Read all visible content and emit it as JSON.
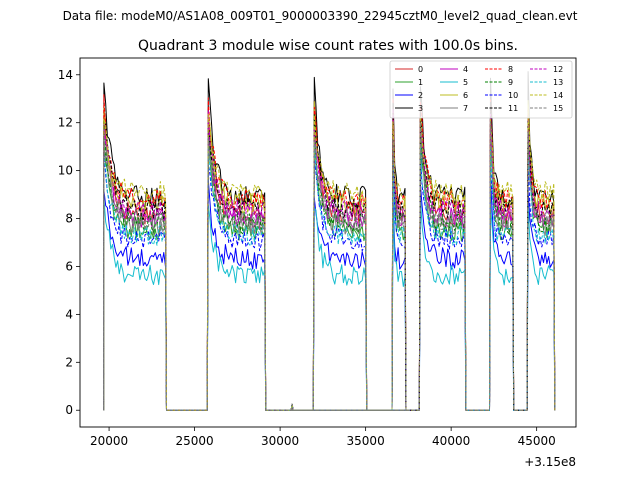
{
  "chart_data": {
    "type": "line",
    "suptitle": "Data file: modeM0/AS1A08_009T01_9000003390_22945cztM0_level2_quad_clean.evt",
    "title": "Quadrant 3 module wise count rates with 100.0s bins.",
    "xlabel": "",
    "ylabel": "",
    "x_offset_label": "+3.15e8",
    "xlim": [
      18300,
      47300
    ],
    "ylim": [
      -0.7,
      14.7
    ],
    "x_ticks": [
      20000,
      25000,
      30000,
      35000,
      40000,
      45000
    ],
    "x_tick_labels": [
      "20000",
      "25000",
      "30000",
      "35000",
      "40000",
      "45000"
    ],
    "y_ticks": [
      0,
      2,
      4,
      6,
      8,
      10,
      12,
      14
    ],
    "y_tick_labels": [
      "0",
      "2",
      "4",
      "6",
      "8",
      "10",
      "12",
      "14"
    ],
    "active_segments": [
      [
        19700,
        23300
      ],
      [
        25800,
        29100
      ],
      [
        32000,
        35000
      ],
      [
        36600,
        37300
      ],
      [
        38200,
        40800
      ],
      [
        42300,
        43600
      ],
      [
        44500,
        46000
      ]
    ],
    "blip": {
      "x": 30700,
      "y": 0.25
    },
    "series": [
      {
        "name": "0",
        "color": "#d62728",
        "style": "solid",
        "level": 8.2,
        "peak": 12.8
      },
      {
        "name": "1",
        "color": "#2ca02c",
        "style": "solid",
        "level": 7.5,
        "peak": 11.5
      },
      {
        "name": "2",
        "color": "#0000ff",
        "style": "solid",
        "level": 6.3,
        "peak": 9.3
      },
      {
        "name": "3",
        "color": "#000000",
        "style": "solid",
        "level": 8.9,
        "peak": 13.7
      },
      {
        "name": "4",
        "color": "#bf00bf",
        "style": "solid",
        "level": 8.0,
        "peak": 12.0
      },
      {
        "name": "5",
        "color": "#17becf",
        "style": "solid",
        "level": 5.6,
        "peak": 8.8
      },
      {
        "name": "6",
        "color": "#bcbd22",
        "style": "solid",
        "level": 8.6,
        "peak": 12.6
      },
      {
        "name": "7",
        "color": "#7f7f7f",
        "style": "solid",
        "level": 7.7,
        "peak": 11.7
      },
      {
        "name": "8",
        "color": "#ff0000",
        "style": "dashed",
        "level": 8.8,
        "peak": 12.9
      },
      {
        "name": "9",
        "color": "#008000",
        "style": "dashed",
        "level": 7.8,
        "peak": 11.8
      },
      {
        "name": "10",
        "color": "#0000ff",
        "style": "dashed",
        "level": 7.1,
        "peak": 10.4
      },
      {
        "name": "11",
        "color": "#000000",
        "style": "dashed",
        "level": 8.4,
        "peak": 12.5
      },
      {
        "name": "12",
        "color": "#bf00bf",
        "style": "dashed",
        "level": 8.3,
        "peak": 12.2
      },
      {
        "name": "13",
        "color": "#17becf",
        "style": "dashed",
        "level": 7.3,
        "peak": 10.9
      },
      {
        "name": "14",
        "color": "#bcbd22",
        "style": "dashed",
        "level": 9.1,
        "peak": 12.4
      },
      {
        "name": "15",
        "color": "#7f7f7f",
        "style": "dashed",
        "level": 7.9,
        "peak": 11.6
      }
    ],
    "legend_position": "top-right",
    "legend_columns": 4
  }
}
